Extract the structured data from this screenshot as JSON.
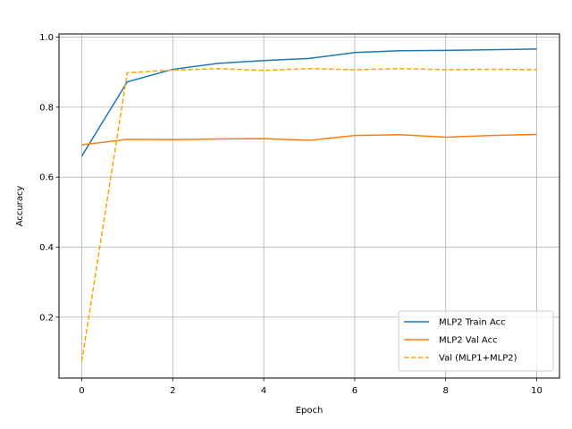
{
  "chart_data": {
    "type": "line",
    "xlabel": "Epoch",
    "ylabel": "Accuracy",
    "xlim": [
      -0.5,
      10.5
    ],
    "ylim": [
      0.026,
      1.009
    ],
    "x_ticks": [
      0,
      2,
      4,
      6,
      8,
      10
    ],
    "y_ticks": [
      0.2,
      0.4,
      0.6,
      0.8,
      1.0
    ],
    "x_tick_labels": [
      "0",
      "2",
      "4",
      "6",
      "8",
      "10"
    ],
    "y_tick_labels": [
      "0.2",
      "0.4",
      "0.6",
      "0.8",
      "1.0"
    ],
    "grid": true,
    "legend_position": "lower-right",
    "x": [
      0,
      1,
      2,
      3,
      4,
      5,
      6,
      7,
      8,
      9,
      10
    ],
    "series": [
      {
        "name": "MLP2 Train Acc",
        "color": "#1f77b4",
        "dash": "solid",
        "values": [
          0.66,
          0.872,
          0.908,
          0.925,
          0.933,
          0.939,
          0.956,
          0.961,
          0.962,
          0.964,
          0.966
        ]
      },
      {
        "name": "MLP2 Val Acc",
        "color": "#ff7f0e",
        "dash": "solid",
        "values": [
          0.692,
          0.708,
          0.707,
          0.709,
          0.71,
          0.705,
          0.719,
          0.721,
          0.714,
          0.719,
          0.722
        ]
      },
      {
        "name": "Val (MLP1+MLP2)",
        "color": "#ffa500",
        "dash": "dashed",
        "values": [
          0.073,
          0.898,
          0.906,
          0.91,
          0.905,
          0.91,
          0.907,
          0.91,
          0.907,
          0.908,
          0.907
        ]
      }
    ]
  }
}
